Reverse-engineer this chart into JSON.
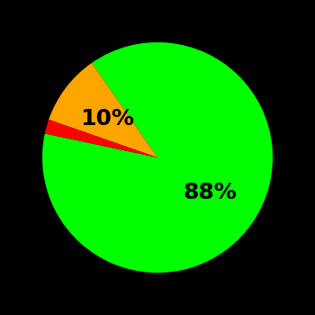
{
  "slices": [
    88,
    10,
    2
  ],
  "colors": [
    "#00ff00",
    "#ffa500",
    "#ff0000"
  ],
  "labels": [
    "88%",
    "10%",
    ""
  ],
  "background_color": "#000000",
  "label_fontsize": 18,
  "label_color": "#000000",
  "startangle": 168,
  "figsize": [
    3.5,
    3.5
  ],
  "dpi": 100,
  "label_radii": [
    0.55,
    0.55,
    0.0
  ]
}
